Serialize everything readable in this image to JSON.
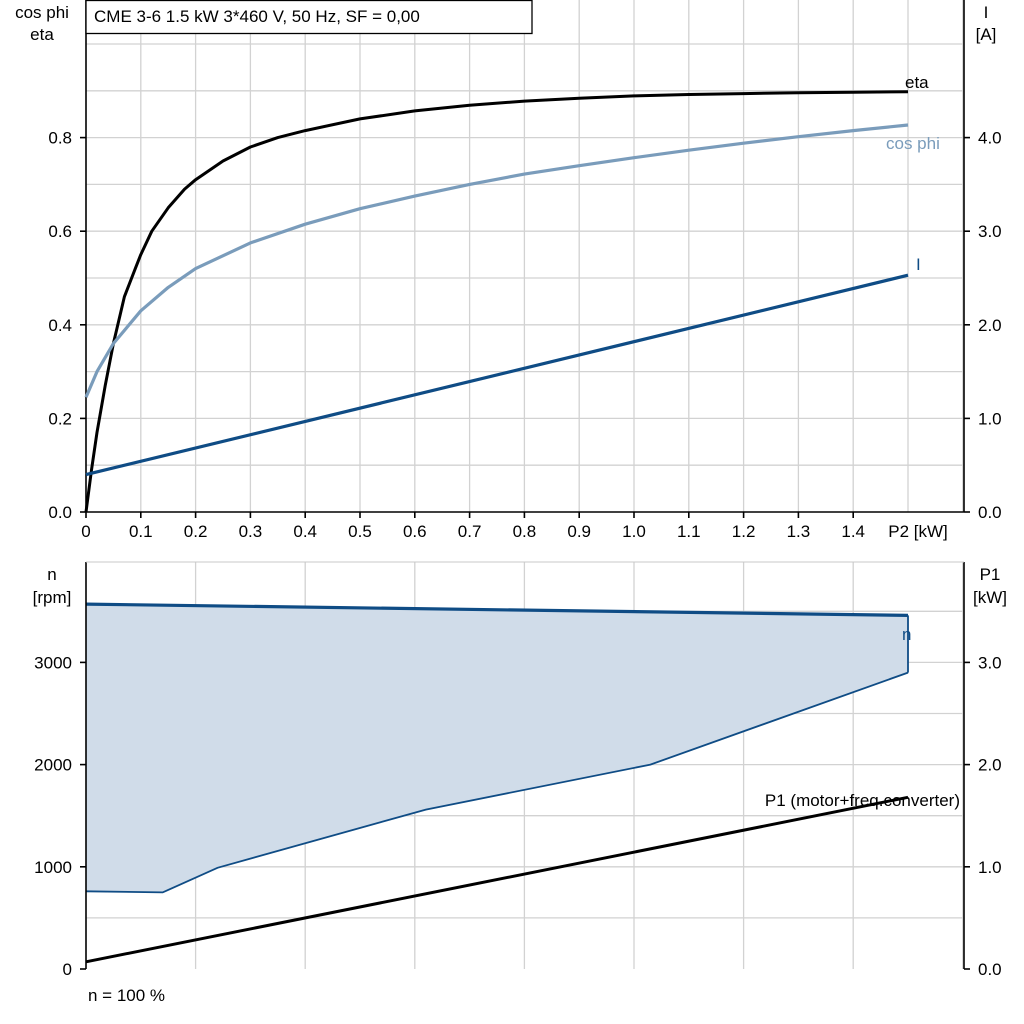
{
  "chart_data": [
    {
      "type": "line",
      "title": "CME 3-6   1.5 kW   3*460 V, 50 Hz, SF = 0,00",
      "xlabel": "P2 [kW]",
      "xlim": [
        0,
        1.5
      ],
      "x_ticks": [
        "0",
        "0.1",
        "0.2",
        "0.3",
        "0.4",
        "0.5",
        "0.6",
        "0.7",
        "0.8",
        "0.9",
        "1.0",
        "1.1",
        "1.2",
        "1.3",
        "1.4"
      ],
      "x_unit_label": "P2 [kW]",
      "ylabel_left": [
        "cos phi",
        "eta"
      ],
      "ylim_left": [
        0,
        1.06
      ],
      "y_ticks_left": [
        "0.0",
        "0.2",
        "0.4",
        "0.6",
        "0.8"
      ],
      "ylabel_right": [
        "I",
        "[A]"
      ],
      "ylim_right": [
        0,
        5.3
      ],
      "y_ticks_right": [
        "0.0",
        "1.0",
        "2.0",
        "3.0",
        "4.0"
      ],
      "grid": true,
      "series": [
        {
          "name": "eta",
          "axis": "left",
          "color": "#000000",
          "points": [
            [
              0,
              0
            ],
            [
              0.01,
              0.09
            ],
            [
              0.02,
              0.17
            ],
            [
              0.035,
              0.27
            ],
            [
              0.05,
              0.36
            ],
            [
              0.07,
              0.46
            ],
            [
              0.09,
              0.52
            ],
            [
              0.1,
              0.55
            ],
            [
              0.12,
              0.6
            ],
            [
              0.15,
              0.65
            ],
            [
              0.18,
              0.69
            ],
            [
              0.2,
              0.71
            ],
            [
              0.25,
              0.75
            ],
            [
              0.3,
              0.78
            ],
            [
              0.35,
              0.8
            ],
            [
              0.4,
              0.815
            ],
            [
              0.5,
              0.84
            ],
            [
              0.6,
              0.857
            ],
            [
              0.7,
              0.869
            ],
            [
              0.8,
              0.878
            ],
            [
              0.9,
              0.884
            ],
            [
              1.0,
              0.889
            ],
            [
              1.1,
              0.892
            ],
            [
              1.2,
              0.894
            ],
            [
              1.3,
              0.896
            ],
            [
              1.4,
              0.897
            ],
            [
              1.5,
              0.898
            ]
          ]
        },
        {
          "name": "cos phi",
          "axis": "left",
          "color": "#7a9cbb",
          "points": [
            [
              0,
              0.245
            ],
            [
              0.02,
              0.3
            ],
            [
              0.05,
              0.36
            ],
            [
              0.1,
              0.43
            ],
            [
              0.15,
              0.48
            ],
            [
              0.2,
              0.52
            ],
            [
              0.3,
              0.575
            ],
            [
              0.4,
              0.615
            ],
            [
              0.5,
              0.648
            ],
            [
              0.6,
              0.675
            ],
            [
              0.7,
              0.7
            ],
            [
              0.8,
              0.722
            ],
            [
              0.9,
              0.74
            ],
            [
              1.0,
              0.757
            ],
            [
              1.1,
              0.773
            ],
            [
              1.2,
              0.788
            ],
            [
              1.3,
              0.802
            ],
            [
              1.4,
              0.815
            ],
            [
              1.5,
              0.827
            ]
          ]
        },
        {
          "name": "I",
          "axis": "right",
          "color": "#0f4c85",
          "points": [
            [
              0,
              0.4
            ],
            [
              1.5,
              2.53
            ]
          ]
        }
      ]
    },
    {
      "type": "area",
      "xlim": [
        0,
        1.6
      ],
      "ylabel_left": [
        "n",
        "[rpm]"
      ],
      "ylim_left": [
        0,
        3550
      ],
      "y_ticks_left": [
        "0",
        "1000",
        "2000",
        "3000"
      ],
      "ylabel_right": [
        "P1",
        "[kW]"
      ],
      "ylim_right": [
        0,
        3.55
      ],
      "y_ticks_right": [
        "0.0",
        "1.0",
        "2.0",
        "3.0"
      ],
      "grid": true,
      "footnote": "n = 100 %",
      "series": [
        {
          "name": "n",
          "axis": "left",
          "color": "#0f4c85",
          "fill": "#d0dce9",
          "upper": [
            [
              0,
              3570
            ],
            [
              1.5,
              3460
            ]
          ],
          "lower": [
            [
              0,
              760
            ],
            [
              0.14,
              750
            ],
            [
              0.24,
              990
            ],
            [
              0.62,
              1560
            ],
            [
              1.03,
              2000
            ],
            [
              1.5,
              2900
            ]
          ]
        },
        {
          "name": "P1 (motor+freq.converter)",
          "axis": "right",
          "color": "#000000",
          "points": [
            [
              0,
              0.07
            ],
            [
              1.5,
              1.68
            ]
          ]
        }
      ]
    }
  ]
}
